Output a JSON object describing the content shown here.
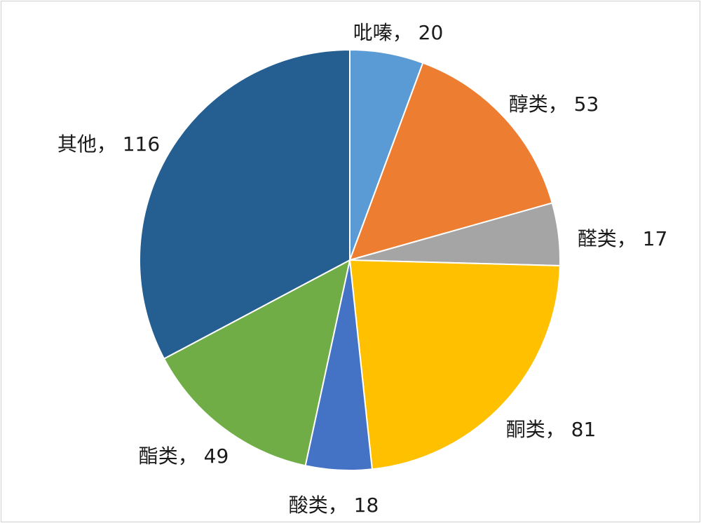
{
  "chart_data": {
    "type": "pie",
    "title": "",
    "legend": "none",
    "slices": [
      {
        "label": "吡嗪",
        "value": 20,
        "color": "#5b9bd5"
      },
      {
        "label": "醇类",
        "value": 53,
        "color": "#ed7d31"
      },
      {
        "label": "醛类",
        "value": 17,
        "color": "#a5a5a5"
      },
      {
        "label": "酮类",
        "value": 81,
        "color": "#ffc000"
      },
      {
        "label": "酸类",
        "value": 18,
        "color": "#4472c4"
      },
      {
        "label": "酯类",
        "value": 49,
        "color": "#70ad47"
      },
      {
        "label": "其他",
        "value": 116,
        "color": "#255e91"
      }
    ],
    "label_separator": "， "
  }
}
